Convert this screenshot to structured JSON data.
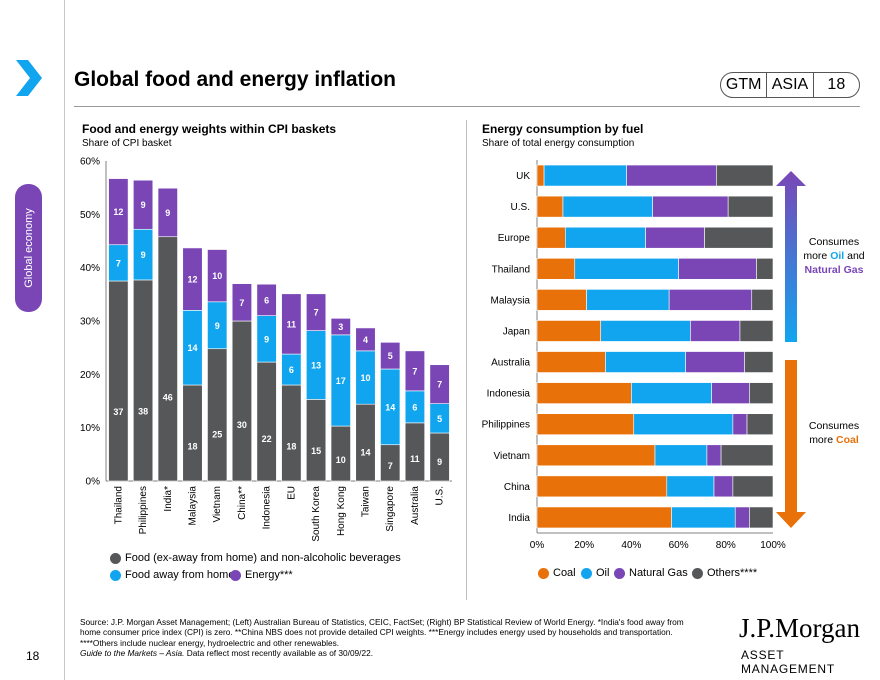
{
  "header": {
    "title": "Global food and energy inflation",
    "badge": [
      "GTM",
      "ASIA",
      "18"
    ],
    "side_tab": "Global economy",
    "page_number": "18"
  },
  "left_chart_text": {
    "title": "Food and energy weights within CPI baskets",
    "subtitle": "Share of CPI basket"
  },
  "right_chart_text": {
    "title": "Energy consumption by fuel",
    "subtitle": "Share of total energy consumption"
  },
  "right_notes": {
    "top": "Consumes",
    "top2": "more ",
    "top_oil": "Oil",
    "top_and": " and",
    "top_gas": "Natural Gas",
    "bottom": "Consumes",
    "bottom2": "more ",
    "bottom_coal": "Coal"
  },
  "colors": {
    "food": "#555759",
    "food_away": "#12a5ef",
    "energy": "#7a46b6",
    "coal": "#e8710a",
    "oil": "#12a5ef",
    "gas": "#7a46b6",
    "others": "#555759",
    "tab": "#7a46b6"
  },
  "chart_data": [
    {
      "type": "bar",
      "stacked": true,
      "categories": [
        "Thailand",
        "Philippines",
        "India*",
        "Malaysia",
        "Vietnam",
        "China**",
        "Indonesia",
        "EU",
        "South Korea",
        "Hong Kong",
        "Taiwan",
        "Singapore",
        "Australia",
        "U.S."
      ],
      "series": [
        {
          "name": "Food (ex-away from home) and non-alcoholic beverages",
          "values": [
            37.5,
            37.7,
            45.8,
            18,
            24.8,
            30,
            22.3,
            18,
            15.3,
            10.3,
            14.4,
            6.8,
            10.9,
            9
          ],
          "labels": [
            "37",
            "38",
            "46",
            "18",
            "25",
            "30",
            "22",
            "18",
            "15",
            "10",
            "14",
            "7",
            "11",
            "9"
          ]
        },
        {
          "name": "Food away from home",
          "values": [
            6.8,
            9.5,
            0,
            14,
            8.8,
            0,
            8.7,
            5.8,
            12.9,
            17.1,
            10,
            14.2,
            6,
            5.5
          ],
          "labels": [
            "7",
            "9",
            "",
            "14",
            "9",
            "",
            "9",
            "6",
            "13",
            "17",
            "10",
            "14",
            "6",
            "5"
          ]
        },
        {
          "name": "Energy***",
          "values": [
            12.4,
            9.2,
            9.1,
            11.7,
            9.8,
            7,
            5.9,
            11.3,
            6.9,
            3.1,
            4.3,
            5,
            7.5,
            7.3
          ],
          "labels": [
            "12",
            "9",
            "9",
            "12",
            "10",
            "7",
            "6",
            "11",
            "7",
            "3",
            "4",
            "5",
            "7",
            "7"
          ]
        }
      ],
      "ylim": [
        0,
        60
      ],
      "yticks": [
        "0%",
        "10%",
        "20%",
        "30%",
        "40%",
        "50%",
        "60%"
      ],
      "legend": "bottom"
    },
    {
      "type": "bar",
      "orientation": "horizontal",
      "stacked": true,
      "categories": [
        "UK",
        "U.S.",
        "Europe",
        "Thailand",
        "Malaysia",
        "Japan",
        "Australia",
        "Indonesia",
        "Philippines",
        "Vietnam",
        "China",
        "India"
      ],
      "series": [
        {
          "name": "Coal",
          "values": [
            3,
            11,
            12,
            16,
            21,
            27,
            29,
            40,
            41,
            50,
            55,
            57
          ]
        },
        {
          "name": "Oil",
          "values": [
            35,
            38,
            34,
            44,
            35,
            38,
            34,
            34,
            42,
            22,
            20,
            27
          ]
        },
        {
          "name": "Natural Gas",
          "values": [
            38,
            32,
            25,
            33,
            35,
            21,
            25,
            16,
            6,
            6,
            8,
            6
          ]
        },
        {
          "name": "Others****",
          "values": [
            24,
            19,
            29,
            7,
            9,
            14,
            12,
            10,
            11,
            22,
            17,
            10
          ]
        }
      ],
      "xlim": [
        0,
        100
      ],
      "xticks": [
        "0%",
        "20%",
        "40%",
        "60%",
        "80%",
        "100%"
      ],
      "legend": "bottom"
    }
  ],
  "legend_left": {
    "food": "Food (ex-away from home) and non-alcoholic beverages",
    "away": "Food away from home",
    "energy": "Energy***"
  },
  "legend_right": {
    "coal": "Coal",
    "oil": "Oil",
    "gas": "Natural Gas",
    "others": "Others****"
  },
  "footer": {
    "source": "Source: J.P. Morgan Asset Management; (Left) Australian Bureau of Statistics, CEIC, FactSet; (Right) BP Statistical Review of World Energy. *India's food away from home consumer price index (CPI) is zero. **China NBS does not provide detailed CPI weights. ***Energy includes energy used by households and transportation. ****Others include nuclear energy, hydroelectric and other renewables.",
    "guide_italic": "Guide to the Markets – Asia.",
    "guide_rest": " Data reflect most recently available as of 30/09/22.",
    "logo_main": "J.P.Morgan",
    "logo_sub": "ASSET MANAGEMENT"
  }
}
